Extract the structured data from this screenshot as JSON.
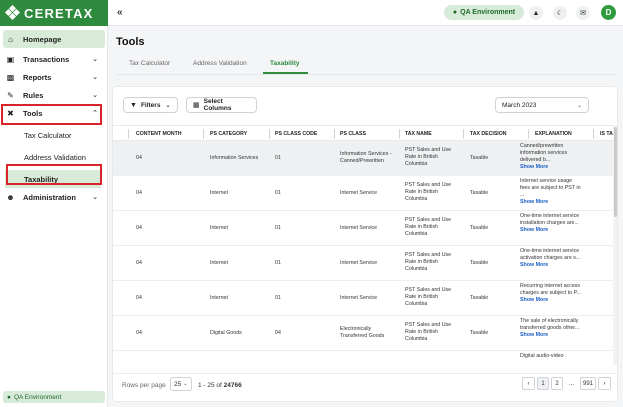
{
  "app": {
    "logo_text": "CERETAX"
  },
  "sidebar": {
    "items": [
      {
        "label": "Homepage",
        "icon": "home-icon"
      },
      {
        "label": "Transactions",
        "icon": "cart-icon"
      },
      {
        "label": "Reports",
        "icon": "chart-icon"
      },
      {
        "label": "Rules",
        "icon": "rules-icon"
      },
      {
        "label": "Tools",
        "icon": "tools-icon"
      }
    ],
    "tools_sub": [
      "Tax Calculator",
      "Address Validation",
      "Taxability"
    ],
    "admin": {
      "label": "Administration",
      "icon": "users-gear-icon"
    },
    "environment": "QA Environment"
  },
  "topbar": {
    "collapse": "«",
    "environment": "QA Environment",
    "avatar": "D"
  },
  "page": {
    "title": "Tools"
  },
  "tabs": [
    "Tax Calculator",
    "Address Validation",
    "Taxability"
  ],
  "toolbar": {
    "filters": "Filters",
    "columns": "Select Columns",
    "month": "March 2023"
  },
  "table": {
    "columns": [
      "CONTENT MONTH",
      "PS CATEGORY",
      "PS CLASS CODE",
      "PS CLASS",
      "TAX NAME",
      "TAX DECISION",
      "EXPLANATION",
      "IS TAX"
    ],
    "rows": [
      {
        "month": "04",
        "category": "Information Services",
        "code": "01",
        "cls": "Information Services - Canned/Prewritten",
        "tax": "PST Sales and Use Rate in British Columbia",
        "decision": "Taxable",
        "exp": "Canned/prewritten information services delivered b...",
        "more": "Show More"
      },
      {
        "month": "04",
        "category": "Internet",
        "code": "01",
        "cls": "Internet Service",
        "tax": "PST Sales and Use Rate in British Columbia",
        "decision": "Taxable",
        "exp": "Internet service usage fees are subject to PST in ...",
        "more": "Show More"
      },
      {
        "month": "04",
        "category": "Internet",
        "code": "01",
        "cls": "Internet Service",
        "tax": "PST Sales and Use Rate in British Columbia",
        "decision": "Taxable",
        "exp": "One-time internet service installation charges are...",
        "more": "Show More"
      },
      {
        "month": "04",
        "category": "Internet",
        "code": "01",
        "cls": "Internet Service",
        "tax": "PST Sales and Use Rate in British Columbia",
        "decision": "Taxable",
        "exp": "One-time internet service activation charges are s...",
        "more": "Show More"
      },
      {
        "month": "04",
        "category": "Internet",
        "code": "01",
        "cls": "Internet Service",
        "tax": "PST Sales and Use Rate in British Columbia",
        "decision": "Taxable",
        "exp": "Recurring internet access charges are subject to P...",
        "more": "Show More"
      },
      {
        "month": "04",
        "category": "Digital Goods",
        "code": "04",
        "cls": "Electronically Transferred Goods",
        "tax": "PST Sales and Use Rate in British Columbia",
        "decision": "Taxable",
        "exp": "The sale of electronically transferred goods other...",
        "more": "Show More"
      }
    ],
    "partial_row": {
      "exp": "Digital audio-video"
    }
  },
  "footer": {
    "rows_label": "Rows per page",
    "rows_value": "25",
    "range_text": "1 - 25 of",
    "total": "24766",
    "pages": [
      "‹",
      "1",
      "2",
      "...",
      "991",
      "›"
    ]
  }
}
